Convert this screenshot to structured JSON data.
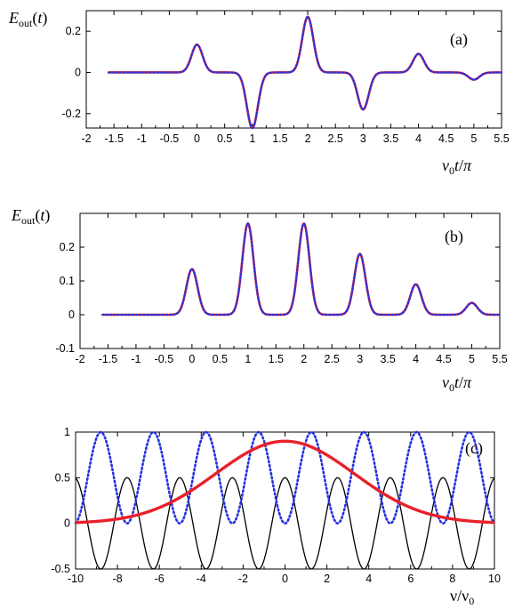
{
  "chart_data": [
    {
      "type": "line",
      "panel_label": "(a)",
      "ylabel": "E_out(t)",
      "xlabel": "v0t/π",
      "xlim": [
        -2,
        5.5
      ],
      "ylim": [
        -0.27,
        0.3
      ],
      "xticks": [
        -2,
        -1.5,
        -1,
        -0.5,
        0,
        0.5,
        1,
        1.5,
        2,
        2.5,
        3,
        3.5,
        4,
        4.5,
        5,
        5.5
      ],
      "xtick_labels": [
        "-2",
        "-1.5",
        "-1",
        "-0.5",
        "0",
        "0.5",
        "1",
        "1.5",
        "2",
        "2.5",
        "3",
        "3.5",
        "4",
        "4.5",
        "5",
        "5.5"
      ],
      "yticks": [
        -0.2,
        0,
        0.2
      ],
      "ytick_labels": [
        "-0.2",
        "0",
        "0.2"
      ],
      "x_range": [
        -1.6,
        5.5
      ],
      "pulse_width_sigma": 0.1,
      "peaks": [
        {
          "x": 0,
          "y": 0.135
        },
        {
          "x": 1,
          "y": -0.27
        },
        {
          "x": 2,
          "y": 0.27
        },
        {
          "x": 3,
          "y": -0.18
        },
        {
          "x": 4,
          "y": 0.09
        },
        {
          "x": 5,
          "y": -0.035
        }
      ],
      "series": [
        {
          "style": "solid",
          "color": "#e8202a"
        },
        {
          "style": "dotted",
          "color": "#2432e0"
        }
      ],
      "grid": false
    },
    {
      "type": "line",
      "panel_label": "(b)",
      "ylabel": "E_out(t)",
      "xlabel": "v0t/π",
      "xlim": [
        -2,
        5.5
      ],
      "ylim": [
        -0.1,
        0.3
      ],
      "xticks": [
        -2,
        -1.5,
        -1,
        -0.5,
        0,
        0.5,
        1,
        1.5,
        2,
        2.5,
        3,
        3.5,
        4,
        4.5,
        5,
        5.5
      ],
      "xtick_labels": [
        "-2",
        "-1.5",
        "-1",
        "-0.5",
        "0",
        "0.5",
        "1",
        "1.5",
        "2",
        "2.5",
        "3",
        "3.5",
        "4",
        "4.5",
        "5",
        "5.5"
      ],
      "yticks": [
        -0.1,
        0,
        0.1,
        0.2
      ],
      "ytick_labels": [
        "-0.1",
        "0",
        "0.1",
        "0.2"
      ],
      "x_range": [
        -1.6,
        5.5
      ],
      "pulse_width_sigma": 0.1,
      "peaks": [
        {
          "x": 0,
          "y": 0.135
        },
        {
          "x": 1,
          "y": 0.27
        },
        {
          "x": 2,
          "y": 0.27
        },
        {
          "x": 3,
          "y": 0.18
        },
        {
          "x": 4,
          "y": 0.09
        },
        {
          "x": 5,
          "y": 0.035
        }
      ],
      "series": [
        {
          "style": "solid",
          "color": "#e8202a"
        },
        {
          "style": "dotted",
          "color": "#2432e0"
        }
      ],
      "grid": false
    },
    {
      "type": "line",
      "panel_label": "(c)",
      "xlabel": "ν/ν0",
      "ylabel": "",
      "xlim": [
        -10,
        10
      ],
      "ylim": [
        -0.5,
        1
      ],
      "xticks": [
        -10,
        -8,
        -6,
        -4,
        -2,
        0,
        2,
        4,
        6,
        8,
        10
      ],
      "xtick_labels": [
        "-10",
        "-8",
        "-6",
        "-4",
        "-2",
        "0",
        "2",
        "4",
        "6",
        "8",
        "10"
      ],
      "yticks": [
        -0.5,
        0,
        0.5,
        1
      ],
      "ytick_labels": [
        "-0.5",
        "0",
        "0.5",
        "1"
      ],
      "series": [
        {
          "style": "solid",
          "color": "#000000",
          "formula": "0.5*cos(2.5*x)",
          "amplitude": 0.5,
          "angular_freq": 2.5
        },
        {
          "style": "dotted",
          "color": "#2432e0",
          "formula": "0.5*(1-cos(2.5*x))",
          "angular_freq": 2.5
        },
        {
          "style": "solid-thick",
          "color": "#e8202a",
          "formula": "0.9*exp(-x^2/(2*3.3^2))",
          "peak": 0.9,
          "sigma": 3.3
        }
      ],
      "grid": false
    }
  ]
}
